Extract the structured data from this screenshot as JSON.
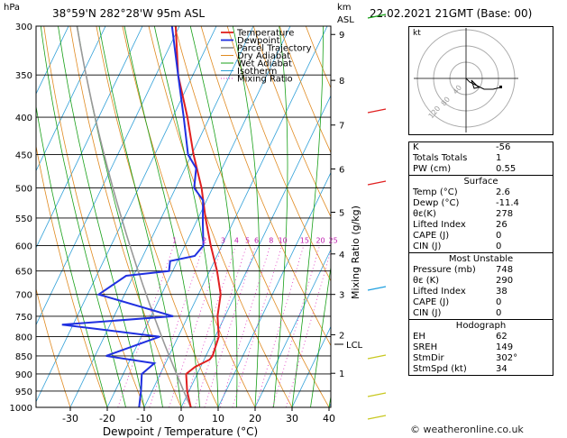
{
  "header": {
    "hpa_label": "hPa",
    "location": "38°59'N  282°28'W  95m  ASL",
    "km_label": "km",
    "asl_label": "ASL",
    "datetime": "22.02.2021  21GMT  (Base: 00)"
  },
  "chart_data": {
    "type": "line",
    "title": "Skew-T log-P diagram",
    "xlabel": "Dewpoint / Temperature (°C)",
    "ylabel_left": "hPa",
    "ylabel_right": "Mixing Ratio (g/kg)",
    "pressure_ticks": [
      "300",
      "350",
      "400",
      "450",
      "500",
      "550",
      "600",
      "650",
      "700",
      "750",
      "800",
      "850",
      "900",
      "950",
      "1000"
    ],
    "temp_ticks": [
      "-30",
      "-20",
      "-10",
      "0",
      "10",
      "20",
      "30",
      "40"
    ],
    "km_ticks": [
      "1",
      "2",
      "3",
      "4",
      "5",
      "6",
      "7",
      "8",
      "9"
    ],
    "lcl_label": "LCL",
    "mixing_ratio_labels": [
      "1",
      "2",
      "3",
      "4",
      "5",
      "6",
      "8",
      "10",
      "15",
      "20",
      "25"
    ],
    "legend": [
      "Temperature",
      "Dewpoint",
      "Parcel Trajectory",
      "Dry Adiabat",
      "Wet Adiabat",
      "Isotherm",
      "Mixing Ratio"
    ],
    "series": [
      {
        "name": "Temperature",
        "color": "#e02020",
        "points": [
          [
            1000,
            2.6
          ],
          [
            950,
            -0.5
          ],
          [
            900,
            -3
          ],
          [
            880,
            -1.5
          ],
          [
            860,
            1.5
          ],
          [
            850,
            1.8
          ],
          [
            800,
            1
          ],
          [
            750,
            -2
          ],
          [
            700,
            -4
          ],
          [
            650,
            -8
          ],
          [
            600,
            -13
          ],
          [
            550,
            -18
          ],
          [
            500,
            -23
          ],
          [
            450,
            -29.5
          ],
          [
            400,
            -36
          ],
          [
            350,
            -44
          ],
          [
            300,
            -51
          ]
        ]
      },
      {
        "name": "Dewpoint",
        "color": "#2030e0",
        "points": [
          [
            1000,
            -11.4
          ],
          [
            950,
            -13
          ],
          [
            900,
            -15
          ],
          [
            870,
            -13
          ],
          [
            850,
            -27
          ],
          [
            800,
            -15
          ],
          [
            770,
            -43
          ],
          [
            750,
            -14
          ],
          [
            700,
            -37
          ],
          [
            660,
            -32
          ],
          [
            650,
            -21
          ],
          [
            630,
            -22
          ],
          [
            620,
            -16
          ],
          [
            600,
            -15
          ],
          [
            560,
            -18
          ],
          [
            520,
            -21
          ],
          [
            500,
            -25
          ],
          [
            470,
            -27
          ],
          [
            450,
            -31
          ],
          [
            400,
            -37
          ],
          [
            350,
            -44
          ],
          [
            300,
            -52
          ]
        ]
      }
    ]
  },
  "hodograph": {
    "kt_label": "kt",
    "ring_labels": [
      "40",
      "80",
      "120"
    ]
  },
  "indices": [
    {
      "label": "K",
      "value": "-56"
    },
    {
      "label": "Totals Totals",
      "value": "1"
    },
    {
      "label": "PW (cm)",
      "value": "0.55"
    }
  ],
  "surface": {
    "title": "Surface",
    "rows": [
      {
        "label": "Temp (°C)",
        "value": "2.6"
      },
      {
        "label": "Dewp (°C)",
        "value": "-11.4"
      },
      {
        "label": "θε(K)",
        "value": "278"
      },
      {
        "label": "Lifted Index",
        "value": "26"
      },
      {
        "label": "CAPE (J)",
        "value": "0"
      },
      {
        "label": "CIN (J)",
        "value": "0"
      }
    ]
  },
  "most_unstable": {
    "title": "Most Unstable",
    "rows": [
      {
        "label": "Pressure (mb)",
        "value": "748"
      },
      {
        "label": "θε (K)",
        "value": "290"
      },
      {
        "label": "Lifted Index",
        "value": "38"
      },
      {
        "label": "CAPE (J)",
        "value": "0"
      },
      {
        "label": "CIN (J)",
        "value": "0"
      }
    ]
  },
  "hodo_table": {
    "title": "Hodograph",
    "rows": [
      {
        "label": "EH",
        "value": "62"
      },
      {
        "label": "SREH",
        "value": "149"
      },
      {
        "label": "StmDir",
        "value": "302°"
      },
      {
        "label": "StmSpd (kt)",
        "value": "34"
      }
    ]
  },
  "footer": "© weatheronline.co.uk"
}
